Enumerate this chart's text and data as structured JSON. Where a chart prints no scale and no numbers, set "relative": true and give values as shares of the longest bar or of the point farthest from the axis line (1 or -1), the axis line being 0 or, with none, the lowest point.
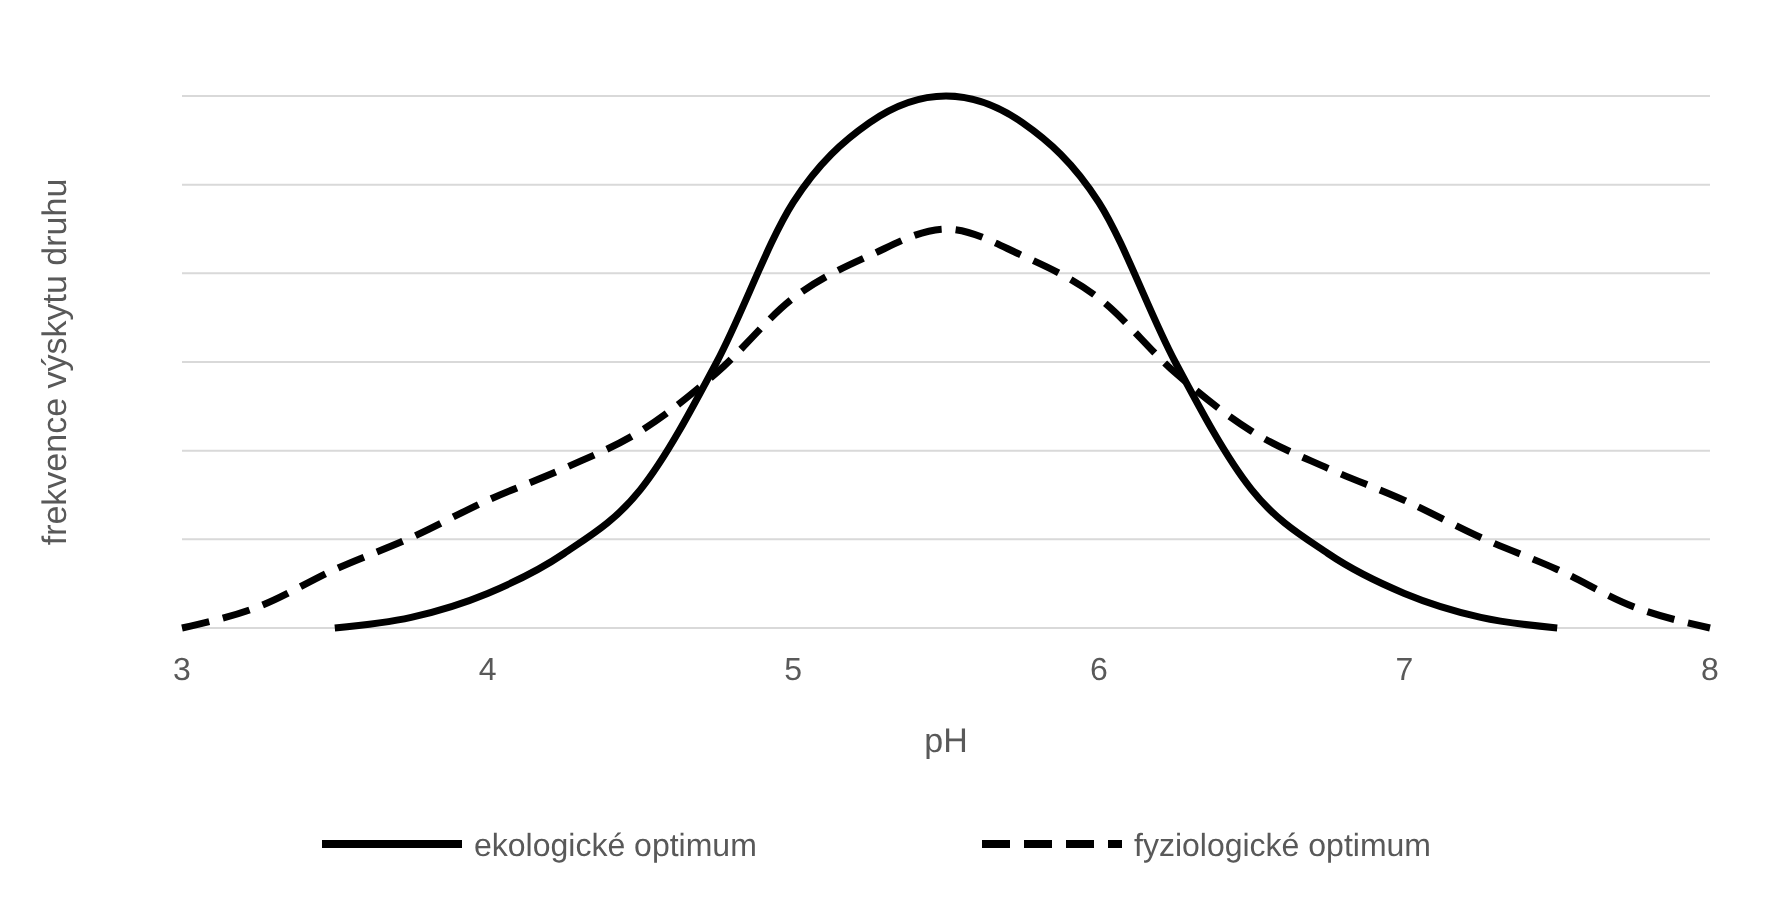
{
  "chart_data": {
    "type": "line",
    "relative": true,
    "xlabel": "pH",
    "ylabel": "frekvence výskytu druhu",
    "xlim": [
      3,
      8
    ],
    "xticks": [
      3,
      4,
      5,
      6,
      7,
      8
    ],
    "grid": "y",
    "legend": "bottom",
    "marker": "none",
    "series": [
      {
        "name": "ekologické optimum",
        "color": "#000000",
        "line_style": "solid",
        "x": [
          3.5,
          3.75,
          4,
          4.25,
          4.5,
          4.75,
          5,
          5.25,
          5.5,
          5.75,
          6,
          6.25,
          6.5,
          6.75,
          7,
          7.25,
          7.5
        ],
        "values": [
          0,
          0.02,
          0.065,
          0.14,
          0.26,
          0.5,
          0.8,
          0.95,
          1,
          0.95,
          0.8,
          0.5,
          0.26,
          0.14,
          0.065,
          0.02,
          0
        ]
      },
      {
        "name": "fyziologické optimum",
        "color": "#000000",
        "line_style": "dashed",
        "x": [
          3,
          3.25,
          3.5,
          3.75,
          4,
          4.25,
          4.5,
          4.75,
          5,
          5.25,
          5.5,
          5.75,
          6,
          6.25,
          6.5,
          6.75,
          7,
          7.25,
          7.5,
          7.75,
          8
        ],
        "values": [
          0,
          0.04,
          0.11,
          0.17,
          0.24,
          0.3,
          0.37,
          0.48,
          0.62,
          0.7,
          0.75,
          0.7,
          0.62,
          0.48,
          0.37,
          0.3,
          0.24,
          0.17,
          0.11,
          0.04,
          0
        ]
      }
    ]
  }
}
